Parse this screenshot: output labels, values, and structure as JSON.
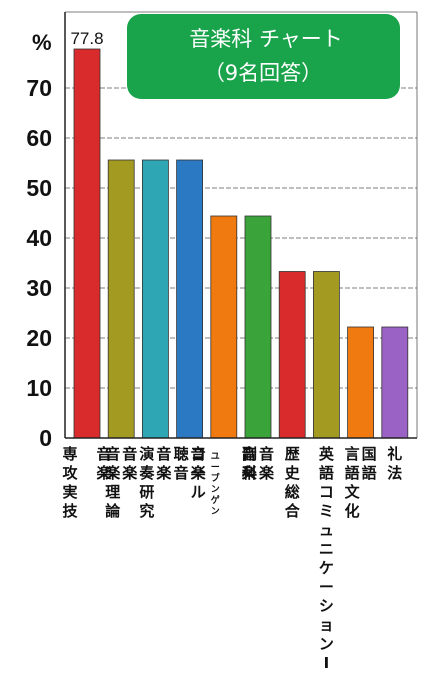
{
  "chart_data": {
    "type": "bar",
    "title": "音楽科 チャート",
    "subtitle": "（9名回答）",
    "ylabel": "%",
    "xlabel": "",
    "ylim": [
      0,
      80
    ],
    "yticks": [
      0,
      10,
      20,
      30,
      40,
      50,
      60,
      70
    ],
    "grid": true,
    "categories": [
      {
        "lines": [
          "専攻実技",
          "",
          "音楽"
        ]
      },
      {
        "lines": [
          "音楽理論",
          "音楽"
        ]
      },
      {
        "lines": [
          "演奏研究",
          "音楽"
        ]
      },
      {
        "lines": [
          "聴音",
          "音楽"
        ]
      },
      {
        "lines": [
          "コール",
          "ユーブンゲン",
          "",
          "音楽"
        ],
        "small": [
          1
        ]
      },
      {
        "lines": [
          "副科",
          "音楽"
        ]
      },
      {
        "lines": [
          "歴史総合"
        ]
      },
      {
        "lines": [
          "英語コミュニケーションⅠ"
        ]
      },
      {
        "lines": [
          "言語文化",
          "国語"
        ]
      },
      {
        "lines": [
          "礼法"
        ]
      }
    ],
    "values": [
      77.8,
      55.6,
      55.6,
      55.6,
      44.4,
      44.4,
      33.3,
      33.3,
      22.2,
      22.2
    ],
    "data_labels": [
      "77.8",
      "",
      "",
      "",
      "",
      "",
      "",
      "",
      "",
      ""
    ],
    "colors": [
      "#d92b2b",
      "#a39a22",
      "#2fa6b3",
      "#2b79c2",
      "#f07a10",
      "#3aa33a",
      "#d92b2b",
      "#a39a22",
      "#f07a10",
      "#9a62c4"
    ],
    "title_box_color": "#19a34a"
  }
}
